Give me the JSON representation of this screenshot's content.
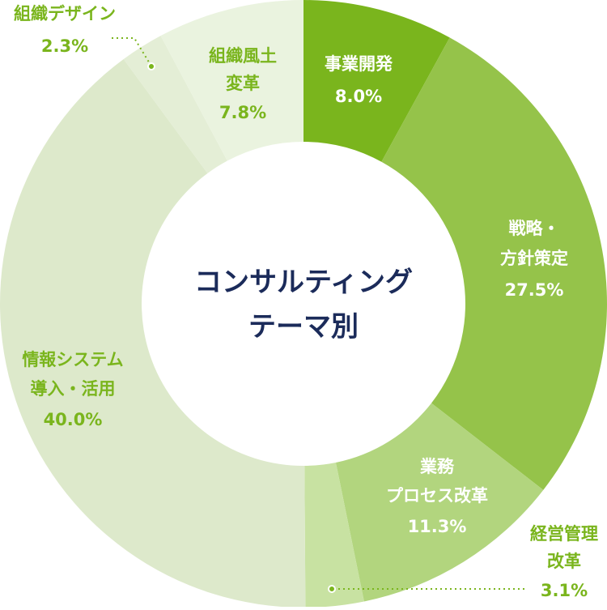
{
  "chart_data": {
    "type": "donut",
    "title": [
      "コンサルティング",
      "テーマ別"
    ],
    "categories": [
      [
        "事業開発"
      ],
      [
        "戦略・",
        "方針策定"
      ],
      [
        "業務",
        "プロセス改革"
      ],
      [
        "経営管理",
        "改革"
      ],
      [
        "情報システム",
        "導入・活用"
      ],
      [
        "組織デザイン"
      ],
      [
        "組織風土",
        "変革"
      ]
    ],
    "values": [
      8.0,
      27.5,
      11.3,
      3.1,
      40.0,
      2.3,
      7.8
    ],
    "value_labels": [
      "8.0%",
      "27.5%",
      "11.3%",
      "3.1%",
      "40.0%",
      "2.3%",
      "7.8%"
    ],
    "colors": [
      "#7ab51d",
      "#95c34a",
      "#b2d57e",
      "#c8e2a2",
      "#dde9cb",
      "#e4eed6",
      "#eaf3df"
    ]
  }
}
